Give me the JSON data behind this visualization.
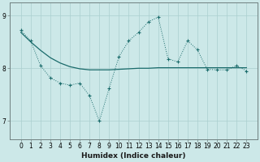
{
  "xlabel": "Humidex (Indice chaleur)",
  "ylabel": "",
  "bg_color": "#cce8e8",
  "line_color": "#1a6b6b",
  "grid_color": "#aacfcf",
  "x_data": [
    0,
    1,
    2,
    3,
    4,
    5,
    6,
    7,
    8,
    9,
    10,
    11,
    12,
    13,
    14,
    15,
    16,
    17,
    18,
    19,
    20,
    21,
    22,
    23
  ],
  "y_jagged": [
    8.72,
    8.52,
    8.05,
    7.82,
    7.72,
    7.68,
    7.72,
    7.48,
    7.0,
    7.62,
    8.22,
    8.52,
    8.68,
    8.88,
    8.97,
    8.18,
    8.12,
    8.52,
    8.35,
    7.98,
    7.97,
    7.97,
    8.05,
    7.95
  ],
  "y_smooth": [
    8.68,
    8.5,
    8.34,
    8.2,
    8.1,
    8.03,
    7.99,
    7.97,
    7.97,
    7.97,
    7.98,
    7.99,
    8.0,
    8.0,
    8.01,
    8.01,
    8.01,
    8.01,
    8.01,
    8.01,
    8.01,
    8.01,
    8.01,
    8.01
  ],
  "ylim_min": 6.65,
  "ylim_max": 9.25,
  "yticks": [
    7,
    8,
    9
  ],
  "xticks": [
    0,
    1,
    2,
    3,
    4,
    5,
    6,
    7,
    8,
    9,
    10,
    11,
    12,
    13,
    14,
    15,
    16,
    17,
    18,
    19,
    20,
    21,
    22,
    23
  ],
  "tick_fontsize": 5.5,
  "label_fontsize": 6.5,
  "figwidth": 3.2,
  "figheight": 2.0,
  "dpi": 100
}
